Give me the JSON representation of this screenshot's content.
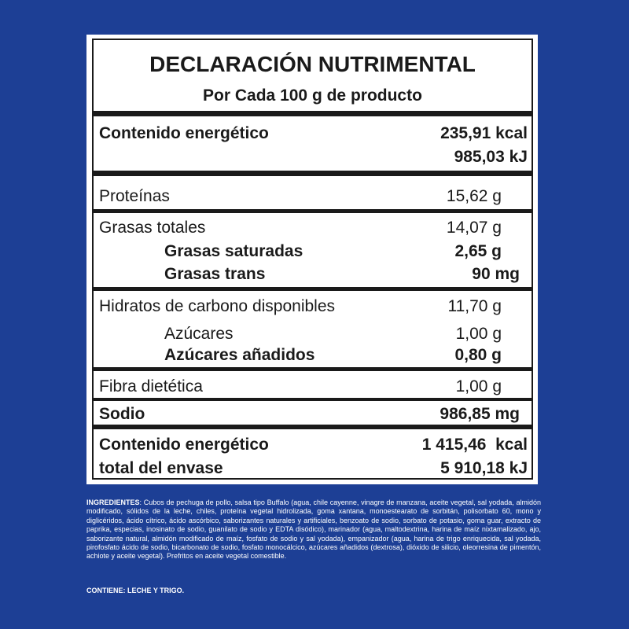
{
  "colors": {
    "background": "#1d3f95",
    "panel": "#ffffff",
    "text": "#1a1a1a"
  },
  "label": {
    "title": "DECLARACIÓN NUTRIMENTAL",
    "subtitle": "Por Cada 100 g de producto",
    "energy": {
      "label": "Contenido energético",
      "kcal": "235,91 kcal",
      "kj": "985,03 kJ"
    },
    "proteins": {
      "label": "Proteínas",
      "value": "15,62 g"
    },
    "fats": {
      "label": "Grasas totales",
      "value": "14,07 g"
    },
    "saturated": {
      "label": "Grasas saturadas",
      "value": "2,65 g"
    },
    "trans": {
      "label": "Grasas trans",
      "value": "90 mg"
    },
    "carbs": {
      "label": "Hidratos de carbono disponibles",
      "value": "11,70 g"
    },
    "sugars": {
      "label": "Azúcares",
      "value": "1,00 g"
    },
    "added_sugars": {
      "label": "Azúcares añadidos",
      "value": "0,80 g"
    },
    "fiber": {
      "label": "Fibra dietética",
      "value": "1,00 g"
    },
    "sodium": {
      "label": "Sodio",
      "value": "986,85 mg"
    },
    "total_energy": {
      "label_line1": "Contenido energético",
      "label_line2": "total del envase",
      "kcal": "1 415,46  kcal",
      "kj": "5 910,18 kJ"
    }
  },
  "ingredients": {
    "label": "INGREDIENTES",
    "text": ": Cubos de pechuga de pollo, salsa tipo Buffalo (agua, chile cayenne, vinagre de manzana, aceite vegetal, sal yodada, almidón modificado, sólidos de la leche, chiles, proteína vegetal hidrolizada, goma xantana, monoestearato de sorbitán, polisorbato 60, mono y diglicéridos, ácido cítrico, ácido ascórbico, saborizantes naturales y artificiales, benzoato de sodio, sorbato de potasio, goma guar, extracto de paprika, especias, inosinato de sodio, guanilato de sodio y EDTA disódico), marinador (agua, maltodextrina, harina de maíz nixtamalizado, ajo, saborizante natural, almidón modificado de maíz, fosfato de sodio y sal yodada), empanizador (agua, harina de trigo enriquecida, sal yodada, pirofosfato ácido de sodio, bicarbonato de sodio, fosfato monocálcico, azúcares añadidos (dextrosa), dióxido de silicio, oleorresina de pimentón, achiote y aceite vegetal). Prefritos en aceite vegetal comestible."
  },
  "contains": "CONTIENE: LECHE Y TRIGO."
}
